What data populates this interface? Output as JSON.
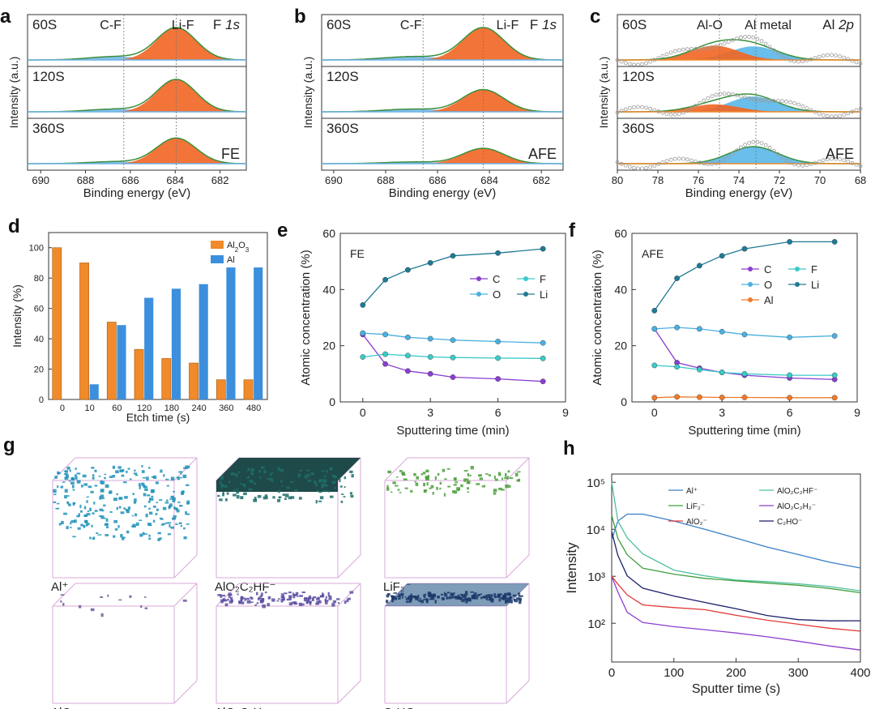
{
  "panels": {
    "a": {
      "letter": "a",
      "ylabel": "Intensity (a.u.)",
      "xlabel": "Binding energy (eV)",
      "element": "F 1s",
      "sample": "FE",
      "rows": [
        "60S",
        "120S",
        "360S"
      ],
      "peak_labels": [
        "C-F",
        "Li-F"
      ],
      "xticks": [
        "690",
        "688",
        "686",
        "684",
        "682"
      ]
    },
    "b": {
      "letter": "b",
      "ylabel": "Intensity (a.u.)",
      "xlabel": "Binding energy (eV)",
      "element": "F 1s",
      "sample": "AFE",
      "rows": [
        "60S",
        "120S",
        "360S"
      ],
      "peak_labels": [
        "C-F",
        "Li-F"
      ],
      "xticks": [
        "690",
        "688",
        "686",
        "684",
        "682"
      ]
    },
    "c": {
      "letter": "c",
      "ylabel": "Intensity (a.u.)",
      "xlabel": "Binding energy (eV)",
      "element": "Al 2p",
      "sample": "AFE",
      "rows": [
        "60S",
        "120S",
        "360S"
      ],
      "peak_labels": [
        "Al-O",
        "Al metal"
      ],
      "xticks": [
        "80",
        "78",
        "76",
        "74",
        "72",
        "70",
        "68"
      ]
    },
    "d": {
      "letter": "d"
    },
    "e": {
      "letter": "e"
    },
    "f": {
      "letter": "f"
    },
    "g": {
      "letter": "g",
      "labels": [
        "Al⁺",
        "AlO₂C₂HF⁻",
        "LiF₂⁻",
        "AlO₂⁻",
        "AlO₂C₂H₂⁻",
        "C₂HO⁻"
      ]
    },
    "h": {
      "letter": "h"
    }
  },
  "chart_data": [
    {
      "id": "d",
      "type": "bar",
      "categories": [
        "0",
        "10",
        "60",
        "120",
        "180",
        "240",
        "360",
        "480"
      ],
      "series": [
        {
          "name": "Al2O3",
          "color": "#f08a2a",
          "values": [
            100,
            90,
            51,
            33,
            27,
            24,
            13,
            13
          ]
        },
        {
          "name": "Al",
          "color": "#3c8fdc",
          "values": [
            0,
            10,
            49,
            67,
            73,
            76,
            87,
            87
          ]
        }
      ],
      "xlabel": "Etch time (s)",
      "ylabel": "Intensity (%)",
      "ylim": [
        0,
        110
      ],
      "yticks": [
        0,
        20,
        40,
        60,
        80,
        100
      ]
    },
    {
      "id": "e",
      "type": "line",
      "title": "FE",
      "x": [
        0,
        1,
        2,
        3,
        4,
        6,
        8
      ],
      "series": [
        {
          "name": "C",
          "color": "#8a3fd1",
          "values": [
            24,
            13.5,
            11,
            10,
            8.8,
            8.2,
            7.3
          ]
        },
        {
          "name": "F",
          "color": "#3cc9c9",
          "values": [
            16,
            17,
            16.5,
            16,
            15.8,
            15.6,
            15.5
          ]
        },
        {
          "name": "O",
          "color": "#4ab0e0",
          "values": [
            24.5,
            24,
            23,
            22.5,
            22,
            21.5,
            21
          ]
        },
        {
          "name": "Li",
          "color": "#1f7a94",
          "values": [
            34.5,
            43.5,
            47,
            49.5,
            52,
            53,
            54.5
          ]
        }
      ],
      "xlabel": "Sputtering time (min)",
      "ylabel": "Atomic concentration (%)",
      "xlim": [
        -1,
        9
      ],
      "ylim": [
        0,
        60
      ],
      "xticks": [
        0,
        3,
        6,
        9
      ],
      "yticks": [
        0,
        20,
        40,
        60
      ]
    },
    {
      "id": "f",
      "type": "line",
      "title": "AFE",
      "x": [
        0,
        1,
        2,
        3,
        4,
        6,
        8
      ],
      "series": [
        {
          "name": "C",
          "color": "#8a3fd1",
          "values": [
            26,
            14,
            12,
            10.5,
            9.5,
            8.5,
            8
          ]
        },
        {
          "name": "F",
          "color": "#3cc9c9",
          "values": [
            13,
            12.5,
            11.5,
            10.5,
            10,
            9.5,
            9.5
          ]
        },
        {
          "name": "O",
          "color": "#4ab0e0",
          "values": [
            26,
            26.5,
            26,
            25,
            24,
            23,
            23.5
          ]
        },
        {
          "name": "Li",
          "color": "#1f7a94",
          "values": [
            32.5,
            44,
            48.5,
            52,
            54.5,
            57,
            57
          ]
        },
        {
          "name": "Al",
          "color": "#f07a2a",
          "values": [
            1.5,
            1.8,
            1.7,
            1.6,
            1.6,
            1.5,
            1.5
          ]
        }
      ],
      "xlabel": "Sputtering time (min)",
      "ylabel": "Atomic concentration (%)",
      "xlim": [
        -1,
        9
      ],
      "ylim": [
        0,
        60
      ],
      "xticks": [
        0,
        3,
        6,
        9
      ],
      "yticks": [
        0,
        20,
        40,
        60
      ]
    },
    {
      "id": "h",
      "type": "line",
      "yscale": "log",
      "x": [
        0,
        10,
        25,
        50,
        100,
        150,
        200,
        250,
        300,
        350,
        400
      ],
      "series": [
        {
          "name": "Al⁺",
          "color": "#3a7fc8",
          "values": [
            6000,
            15000,
            21000,
            21000,
            15000,
            10000,
            6500,
            4200,
            2900,
            2000,
            1500
          ]
        },
        {
          "name": "AlO₂C₂HF⁻",
          "color": "#4fc0a0",
          "values": [
            100000,
            13000,
            6000,
            3000,
            1500,
            1200,
            950,
            800,
            650,
            530,
            430
          ]
        },
        {
          "name": "LiF₂⁻",
          "color": "#3f9f3f",
          "values": [
            20000,
            6000,
            3000,
            1700,
            1300,
            1000,
            800,
            650,
            560,
            490,
            430
          ]
        },
        {
          "name": "AlO₂C₂H₂⁻",
          "color": "#8e3fcf",
          "values": [
            1000,
            500,
            200,
            120,
            90,
            70,
            55,
            45,
            38,
            33,
            30
          ]
        },
        {
          "name": "AlO₂⁻",
          "color": "#e23a3a",
          "values": [
            1000,
            800,
            450,
            250,
            200,
            170,
            130,
            110,
            100,
            90,
            80
          ]
        },
        {
          "name": "C₂HO⁻",
          "color": "#1c1f6a",
          "values": [
            9000,
            3000,
            1000,
            500,
            330,
            250,
            200,
            160,
            140,
            130,
            120
          ]
        }
      ],
      "xlabel": "Sputter time (s)",
      "ylabel": "Intensity",
      "xlim": [
        0,
        400
      ],
      "ylim": [
        15,
        150000
      ],
      "xticks": [
        0,
        100,
        200,
        300,
        400
      ],
      "ytick_labels": [
        "10²",
        "10³",
        "10⁴",
        "10⁵"
      ]
    }
  ]
}
